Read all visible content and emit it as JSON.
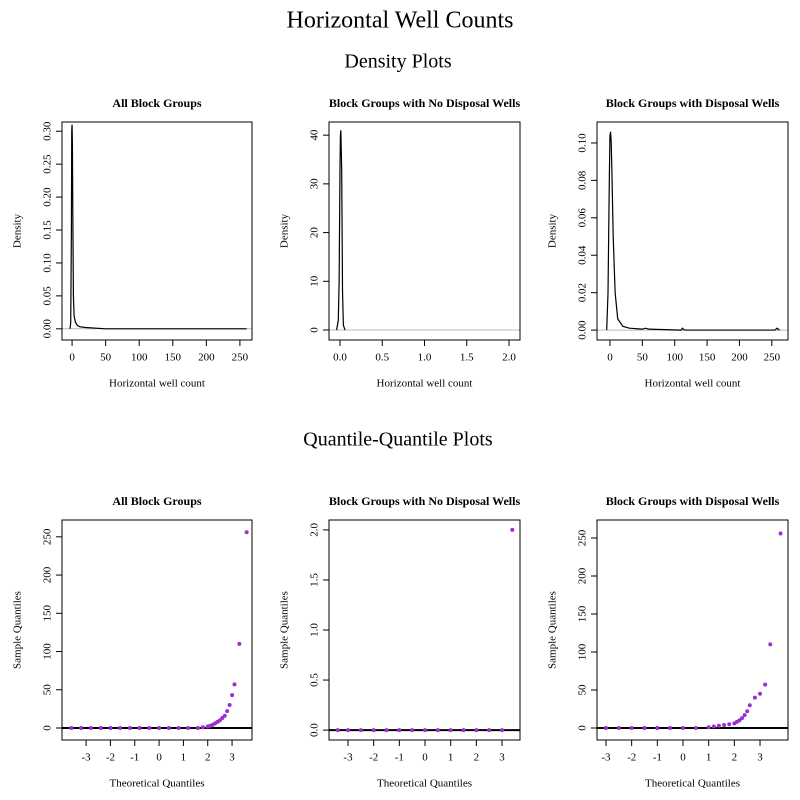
{
  "title": "Horizontal Well Counts",
  "section_titles": [
    "Density Plots",
    "Quantile-Quantile Plots"
  ],
  "chart_data": [
    {
      "type": "line",
      "title": "All Block Groups",
      "xlabel": "Horizontal well count",
      "ylabel": "Density",
      "color": "#000000",
      "x": [
        -3,
        -2,
        -1,
        -0.5,
        0,
        0.5,
        1,
        2,
        3,
        5,
        8,
        12,
        20,
        50,
        100,
        150,
        200,
        260
      ],
      "values": [
        0,
        0.01,
        0.15,
        0.3,
        0.31,
        0.28,
        0.19,
        0.05,
        0.02,
        0.01,
        0.005,
        0.003,
        0.002,
        0,
        0,
        0,
        0,
        0
      ],
      "xlim": [
        -15,
        268
      ],
      "ylim": [
        -0.017,
        0.314
      ],
      "xticks": [
        0,
        50,
        100,
        150,
        200,
        250
      ],
      "yticks": [
        {
          "value": 0,
          "label": "0.00"
        },
        0.05,
        {
          "value": 0.1,
          "label": "0.10"
        },
        0.15,
        {
          "value": 0.2,
          "label": "0.20"
        },
        0.25,
        {
          "value": 0.3,
          "label": "0.30"
        }
      ]
    },
    {
      "type": "line",
      "title": "Block Groups with No Disposal Wells",
      "xlabel": "Horizontal well count",
      "ylabel": "Density",
      "color": "#000000",
      "x": [
        -0.04,
        -0.02,
        -0.01,
        0,
        0.005,
        0.01,
        0.02,
        0.03,
        0.04,
        0.06
      ],
      "values": [
        0,
        2,
        10,
        33,
        40,
        41,
        33,
        8,
        1,
        0
      ],
      "xlim": [
        -0.13,
        2.13
      ],
      "ylim": [
        -2.05,
        42.7
      ],
      "xticks": [
        {
          "value": 0,
          "label": "0.0"
        },
        0.5,
        {
          "value": 1,
          "label": "1.0"
        },
        1.5,
        {
          "value": 2,
          "label": "2.0"
        }
      ],
      "yticks": [
        0,
        10,
        20,
        30,
        40
      ]
    },
    {
      "type": "line",
      "title": "Block Groups with Disposal Wells",
      "xlabel": "Horizontal well count",
      "ylabel": "Density",
      "color": "#000000",
      "x": [
        -5,
        -3,
        -1,
        0,
        1,
        2,
        3,
        5,
        8,
        12,
        20,
        30,
        50,
        55,
        60,
        110,
        112,
        115,
        255,
        258,
        262
      ],
      "values": [
        0,
        0.02,
        0.08,
        0.104,
        0.106,
        0.1,
        0.085,
        0.05,
        0.02,
        0.006,
        0.002,
        0.001,
        0.0005,
        0.001,
        0.0005,
        0,
        0.001,
        0,
        0,
        0.001,
        0
      ],
      "xlim": [
        -20,
        275
      ],
      "ylim": [
        -0.0053,
        0.1112
      ],
      "xticks": [
        0,
        50,
        100,
        150,
        200,
        250
      ],
      "yticks": [
        {
          "value": 0,
          "label": "0.00"
        },
        0.02,
        0.04,
        0.06,
        0.08,
        {
          "value": 0.1,
          "label": "0.10"
        }
      ]
    },
    {
      "type": "scatter",
      "title": "All Block Groups",
      "xlabel": "Theoretical Quantiles",
      "ylabel": "Sample Quantiles",
      "color": "#9b30d0",
      "reference_line": 0,
      "x": [
        -3.6,
        -3.2,
        -2.8,
        -2.4,
        -2.0,
        -1.6,
        -1.2,
        -0.8,
        -0.4,
        0,
        0.4,
        0.8,
        1.2,
        1.6,
        1.8,
        2.0,
        2.1,
        2.2,
        2.3,
        2.4,
        2.5,
        2.6,
        2.7,
        2.8,
        2.9,
        3.0,
        3.1,
        3.3,
        3.6
      ],
      "values": [
        0,
        0,
        0,
        0,
        0,
        0,
        0,
        0,
        0,
        0,
        0,
        0,
        0,
        0,
        1,
        2,
        3,
        4,
        6,
        8,
        10,
        13,
        16,
        22,
        30,
        43,
        57,
        110,
        256
      ],
      "xlim": [
        -3.99,
        3.82
      ],
      "ylim": [
        -15.7,
        272
      ],
      "xticks": [
        -3,
        -2,
        -1,
        0,
        1,
        2,
        3
      ],
      "yticks": [
        0,
        50,
        100,
        150,
        200,
        250
      ]
    },
    {
      "type": "scatter",
      "title": "Block Groups with No Disposal Wells",
      "xlabel": "Theoretical Quantiles",
      "ylabel": "Sample Quantiles",
      "color": "#9b30d0",
      "reference_line": 0,
      "x": [
        -3.4,
        -3,
        -2.5,
        -2,
        -1.5,
        -1,
        -0.5,
        0,
        0.5,
        1,
        1.5,
        2,
        2.5,
        3,
        3.4
      ],
      "values": [
        0,
        0,
        0,
        0,
        0,
        0,
        0,
        0,
        0,
        0,
        0,
        0,
        0,
        0,
        2
      ],
      "xlim": [
        -3.74,
        3.7
      ],
      "ylim": [
        -0.099,
        2.099
      ],
      "xticks": [
        -3,
        -2,
        -1,
        0,
        1,
        2,
        3
      ],
      "yticks": [
        {
          "value": 0,
          "label": "0.0"
        },
        0.5,
        {
          "value": 1,
          "label": "1.0"
        },
        1.5,
        {
          "value": 2,
          "label": "2.0"
        }
      ]
    },
    {
      "type": "scatter",
      "title": "Block Groups with Disposal Wells",
      "xlabel": "Theoretical Quantiles",
      "ylabel": "Sample Quantiles",
      "color": "#9b30d0",
      "reference_line": 0,
      "x": [
        -3,
        -2.5,
        -2,
        -1.5,
        -1,
        -0.5,
        0,
        0.5,
        1,
        1.2,
        1.4,
        1.6,
        1.8,
        2.0,
        2.1,
        2.2,
        2.3,
        2.4,
        2.5,
        2.6,
        2.8,
        3.0,
        3.2,
        3.4,
        3.8
      ],
      "values": [
        0,
        0,
        0,
        0,
        0,
        0,
        0,
        0,
        1,
        2,
        3,
        4,
        5,
        6,
        8,
        10,
        13,
        17,
        22,
        30,
        40,
        45,
        57,
        110,
        256
      ],
      "xlim": [
        -3.35,
        4.09
      ],
      "ylim": [
        -15.8,
        273.7
      ],
      "xticks": [
        -3,
        -2,
        -1,
        0,
        1,
        2,
        3
      ],
      "yticks": [
        0,
        50,
        100,
        150,
        200,
        250
      ]
    }
  ]
}
